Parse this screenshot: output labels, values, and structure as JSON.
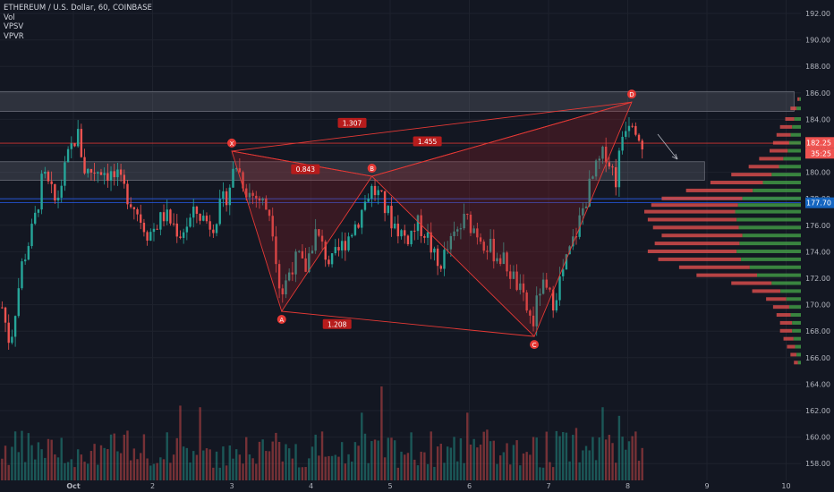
{
  "header": {
    "symbol_line": "ETHEREUM / U.S. Dollar, 60, COINBASE",
    "indicators": [
      "Vol",
      "VPSV",
      "VPVR"
    ]
  },
  "colors": {
    "background": "#131722",
    "up": "#26a69a",
    "down": "#ef5350",
    "pattern": "#e53935",
    "pattern_fill": "rgba(155,34,38,0.28)",
    "zone": "rgba(120,123,134,0.28)",
    "blue_line": "#2962ff",
    "grid": "#1e222d",
    "text": "#b2b5be"
  },
  "axis": {
    "y_labels": [
      "192.00",
      "190.00",
      "188.00",
      "186.00",
      "184.00",
      "182.00",
      "180.00",
      "178.00",
      "176.00",
      "174.00",
      "172.00",
      "170.00",
      "168.00",
      "166.00",
      "164.00",
      "162.00",
      "160.00",
      "158.00"
    ],
    "x_labels": [
      "Oct",
      "2",
      "3",
      "4",
      "5",
      "6",
      "7",
      "8",
      "9",
      "10"
    ]
  },
  "price_tags": {
    "current": "182.25",
    "countdown": "35:25",
    "blue_level": "177.70"
  },
  "pattern": {
    "points": [
      {
        "label": "X",
        "x": 3.0,
        "y": 181.6
      },
      {
        "label": "A",
        "x": 3.63,
        "y": 169.5
      },
      {
        "label": "B",
        "x": 4.77,
        "y": 179.7
      },
      {
        "label": "C",
        "x": 6.82,
        "y": 167.6
      },
      {
        "label": "D",
        "x": 8.05,
        "y": 185.3
      }
    ],
    "ratios": [
      {
        "label": "0.843",
        "x": 3.93,
        "y": 180.2
      },
      {
        "label": "1.307",
        "x": 4.52,
        "y": 183.7
      },
      {
        "label": "1.455",
        "x": 5.47,
        "y": 182.3
      },
      {
        "label": "1.208",
        "x": 4.33,
        "y": 168.5
      }
    ]
  },
  "chart_data": {
    "type": "candlestick",
    "title": "ETHEREUM / U.S. Dollar, 60, COINBASE",
    "x_unit": "day (Oct)",
    "xlim": [
      0.1,
      10.1
    ],
    "ylim": [
      157.5,
      193.2
    ],
    "volume_ylim": [
      0,
      30
    ],
    "anchors": [
      [
        0.1,
        169.8
      ],
      [
        0.2,
        167.0
      ],
      [
        0.35,
        173.0
      ],
      [
        0.5,
        176.0
      ],
      [
        0.62,
        179.8
      ],
      [
        0.78,
        177.6
      ],
      [
        0.95,
        181.5
      ],
      [
        1.05,
        183.0
      ],
      [
        1.15,
        180.0
      ],
      [
        1.35,
        180.3
      ],
      [
        1.55,
        179.5
      ],
      [
        1.75,
        177.7
      ],
      [
        1.95,
        175.3
      ],
      [
        2.15,
        176.8
      ],
      [
        2.35,
        175.4
      ],
      [
        2.55,
        177.0
      ],
      [
        2.75,
        176.0
      ],
      [
        2.95,
        178.5
      ],
      [
        3.05,
        180.7
      ],
      [
        3.2,
        178.5
      ],
      [
        3.35,
        178.0
      ],
      [
        3.5,
        176.8
      ],
      [
        3.62,
        170.5
      ],
      [
        3.75,
        173.0
      ],
      [
        3.85,
        173.5
      ],
      [
        3.92,
        172.5
      ],
      [
        4.05,
        175.5
      ],
      [
        4.25,
        173.0
      ],
      [
        4.45,
        175.0
      ],
      [
        4.6,
        176.5
      ],
      [
        4.75,
        178.8
      ],
      [
        4.85,
        178.3
      ],
      [
        5.0,
        176.5
      ],
      [
        5.2,
        175.0
      ],
      [
        5.35,
        176.0
      ],
      [
        5.45,
        175.5
      ],
      [
        5.6,
        172.8
      ],
      [
        5.8,
        175.0
      ],
      [
        5.95,
        176.5
      ],
      [
        6.1,
        175.5
      ],
      [
        6.25,
        174.3
      ],
      [
        6.45,
        173.2
      ],
      [
        6.6,
        171.5
      ],
      [
        6.8,
        168.5
      ],
      [
        6.9,
        171.5
      ],
      [
        7.05,
        170.2
      ],
      [
        7.2,
        172.8
      ],
      [
        7.35,
        175.5
      ],
      [
        7.5,
        178.6
      ],
      [
        7.62,
        180.5
      ],
      [
        7.72,
        181.6
      ],
      [
        7.85,
        179.5
      ],
      [
        7.95,
        183.5
      ],
      [
        8.05,
        184.3
      ],
      [
        8.2,
        182.2
      ]
    ],
    "volume_profile": [
      [
        185.5,
        2
      ],
      [
        184.8,
        6
      ],
      [
        184.0,
        9
      ],
      [
        183.4,
        12
      ],
      [
        182.8,
        14
      ],
      [
        182.2,
        16
      ],
      [
        181.6,
        18
      ],
      [
        181.0,
        24
      ],
      [
        180.4,
        30
      ],
      [
        179.8,
        40
      ],
      [
        179.2,
        52
      ],
      [
        178.6,
        66
      ],
      [
        178.0,
        80
      ],
      [
        177.5,
        86
      ],
      [
        177.0,
        90
      ],
      [
        176.4,
        88
      ],
      [
        175.8,
        85
      ],
      [
        175.2,
        80
      ],
      [
        174.6,
        84
      ],
      [
        174.0,
        88
      ],
      [
        173.4,
        82
      ],
      [
        172.8,
        70
      ],
      [
        172.2,
        60
      ],
      [
        171.6,
        40
      ],
      [
        171.0,
        28
      ],
      [
        170.4,
        20
      ],
      [
        169.8,
        16
      ],
      [
        169.2,
        14
      ],
      [
        168.6,
        12
      ],
      [
        168.0,
        12
      ],
      [
        167.4,
        10
      ],
      [
        166.8,
        8
      ],
      [
        166.2,
        6
      ],
      [
        165.6,
        4
      ]
    ],
    "horizontal_levels": [
      {
        "price": 182.2,
        "color": "pattern"
      },
      {
        "price": 178.0,
        "color": "blue"
      },
      {
        "price": 177.7,
        "color": "blue"
      }
    ],
    "zones": [
      {
        "x1": 0.0,
        "x2": 10.1,
        "y1": 184.6,
        "y2": 186.1
      },
      {
        "x1": -0.35,
        "x2": 8.97,
        "y1": 179.4,
        "y2": 180.8
      }
    ]
  }
}
